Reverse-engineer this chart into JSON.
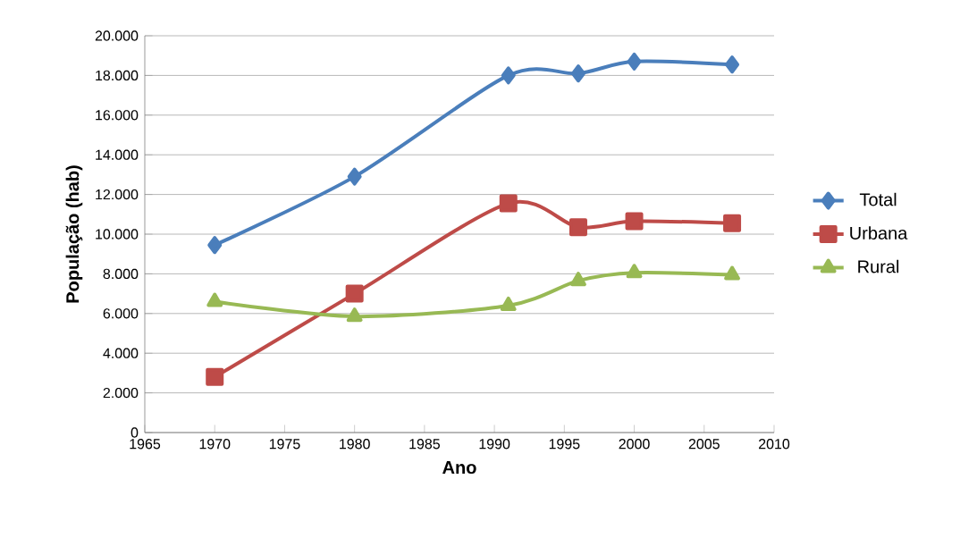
{
  "chart_data": {
    "type": "line",
    "xlabel": "Ano",
    "ylabel": "População (hab)",
    "x": [
      1970,
      1980,
      1991,
      1996,
      2000,
      2007
    ],
    "series": [
      {
        "name": "Total",
        "color": "#4a7ebb",
        "marker": "diamond",
        "values": [
          9450,
          12900,
          18000,
          18100,
          18700,
          18550
        ]
      },
      {
        "name": "Urbana",
        "color": "#be4b48",
        "marker": "square",
        "values": [
          2800,
          7000,
          11550,
          10350,
          10650,
          10550
        ]
      },
      {
        "name": "Rural",
        "color": "#98b954",
        "marker": "triangle",
        "values": [
          6600,
          5850,
          6400,
          7650,
          8050,
          7950
        ]
      }
    ],
    "xlim": [
      1965,
      2010
    ],
    "xticks": [
      1965,
      1970,
      1975,
      1980,
      1985,
      1990,
      1995,
      2000,
      2005,
      2010
    ],
    "ylim": [
      0,
      20000
    ],
    "yticks": [
      0,
      {
        "value": 2000,
        "label": "2.000"
      },
      {
        "value": 4000,
        "label": "4.000"
      },
      {
        "value": 6000,
        "label": "6.000"
      },
      {
        "value": 8000,
        "label": "8.000"
      },
      {
        "value": 10000,
        "label": "10.000"
      },
      {
        "value": 12000,
        "label": "12.000"
      },
      {
        "value": 14000,
        "label": "14.000"
      },
      {
        "value": 16000,
        "label": "16.000"
      },
      {
        "value": 18000,
        "label": "18.000"
      },
      {
        "value": 20000,
        "label": "20.000"
      }
    ],
    "grid": "y",
    "legend": "right"
  }
}
